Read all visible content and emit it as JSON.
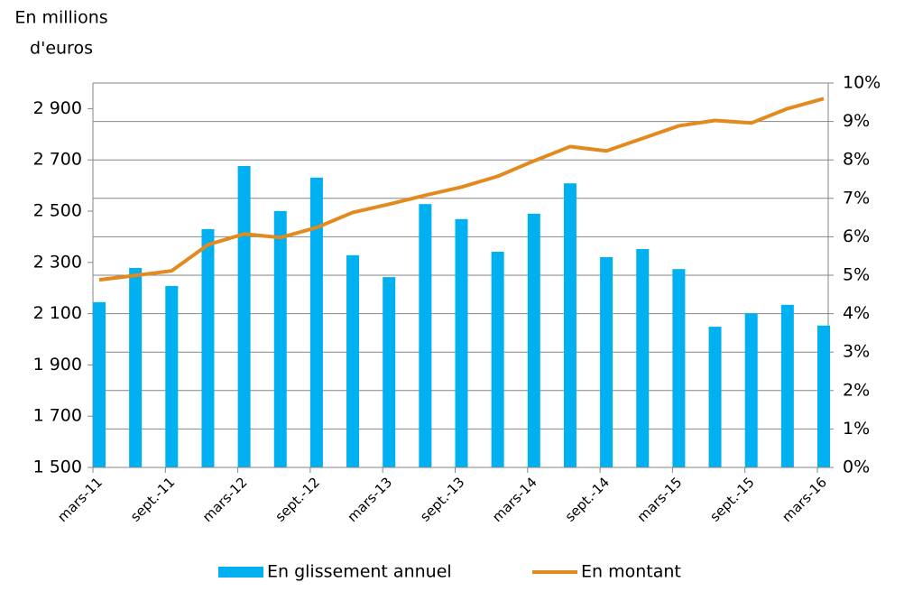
{
  "chart_data": {
    "type": "bar_line",
    "y_label": [
      "En millions",
      "d'euros"
    ],
    "categories": [
      "mars-11",
      null,
      "sept.-11",
      null,
      "mars-12",
      null,
      "sept.-12",
      null,
      "mars-13",
      null,
      "sept.-13",
      null,
      "mars-14",
      null,
      "sept.-14",
      null,
      "mars-15",
      null,
      "sept.-15",
      null,
      "mars-16"
    ],
    "series": [
      {
        "name": "En glissement annuel",
        "kind": "bar",
        "axis": "y2",
        "color": "#00b0f0",
        "values": [
          4.3,
          5.19,
          4.72,
          6.2,
          7.84,
          6.67,
          7.54,
          5.52,
          4.95,
          6.85,
          6.46,
          5.61,
          6.6,
          7.39,
          5.47,
          5.68,
          5.16,
          3.66,
          4.01,
          4.23,
          3.69
        ]
      },
      {
        "name": "En montant",
        "kind": "line",
        "axis": "y",
        "color": "#e38a1e",
        "values": [
          2232,
          2249,
          2267,
          2369,
          2411,
          2397,
          2436,
          2495,
          2527,
          2562,
          2594,
          2636,
          2696,
          2752,
          2735,
          2784,
          2833,
          2854,
          2844,
          2900,
          2939
        ]
      }
    ],
    "ylim": [
      1500,
      3000
    ],
    "yticks": [
      {
        "value": 1500,
        "label": "1 500"
      },
      {
        "value": 1700,
        "label": "1 700"
      },
      {
        "value": 1900,
        "label": "1 900"
      },
      {
        "value": 2100,
        "label": "2 100"
      },
      {
        "value": 2300,
        "label": "2 300"
      },
      {
        "value": 2500,
        "label": "2 500"
      },
      {
        "value": 2700,
        "label": "2 700"
      },
      {
        "value": 2900,
        "label": "2 900"
      }
    ],
    "y2lim": [
      0,
      10
    ],
    "y2ticks": [
      {
        "value": 0,
        "label": "0%"
      },
      {
        "value": 1,
        "label": "1%"
      },
      {
        "value": 2,
        "label": "2%"
      },
      {
        "value": 3,
        "label": "3%"
      },
      {
        "value": 4,
        "label": "4%"
      },
      {
        "value": 5,
        "label": "5%"
      },
      {
        "value": 6,
        "label": "6%"
      },
      {
        "value": 7,
        "label": "7%"
      },
      {
        "value": 8,
        "label": "8%"
      },
      {
        "value": 9,
        "label": "9%"
      },
      {
        "value": 10,
        "label": "10%"
      }
    ],
    "grid": "y2",
    "legend": "bottom"
  }
}
